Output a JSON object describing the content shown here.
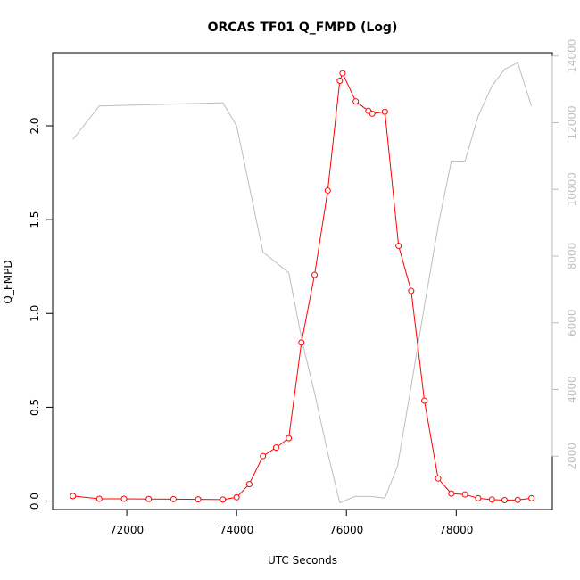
{
  "chart_data": {
    "type": "line",
    "title": "ORCAS TF01 Q_FMPD (Log)",
    "xlabel": "UTC Seconds",
    "ylabel": "Q_FMPD",
    "y2label": "",
    "xlim": [
      70650,
      79750
    ],
    "ylim": [
      -0.045,
      2.39
    ],
    "y2lim": [
      400,
      14100
    ],
    "x_ticks": [
      72000,
      74000,
      76000,
      78000
    ],
    "y_ticks": [
      0.0,
      0.5,
      1.0,
      1.5,
      2.0
    ],
    "y_tick_labels": [
      "0.0",
      "0.5",
      "1.0",
      "1.5",
      "2.0"
    ],
    "y2_ticks": [
      2000,
      4000,
      6000,
      8000,
      10000,
      12000,
      14000
    ],
    "grid": false,
    "series": [
      {
        "axis": "left",
        "color": "#ff0000",
        "marker": "open-circle",
        "x": [
          71020,
          71500,
          71950,
          72400,
          72850,
          73300,
          73750,
          74000,
          74230,
          74480,
          74720,
          74950,
          75180,
          75420,
          75660,
          75880,
          75930,
          76170,
          76400,
          76470,
          76700,
          76950,
          77180,
          77420,
          77670,
          77910,
          78160,
          78400,
          78650,
          78880,
          79120,
          79370
        ],
        "y": [
          0.027,
          0.012,
          0.012,
          0.011,
          0.01,
          0.009,
          0.008,
          0.02,
          0.09,
          0.24,
          0.285,
          0.335,
          0.845,
          1.205,
          1.655,
          2.24,
          2.28,
          2.13,
          2.08,
          2.065,
          2.075,
          1.36,
          1.12,
          0.535,
          0.12,
          0.04,
          0.035,
          0.015,
          0.008,
          0.005,
          0.006,
          0.015
        ]
      },
      {
        "axis": "right",
        "color": "#bebebe",
        "marker": "none",
        "x": [
          71020,
          71500,
          73750,
          74000,
          74230,
          74480,
          74950,
          75200,
          75420,
          75660,
          75880,
          76150,
          76450,
          76700,
          76930,
          77180,
          77420,
          77670,
          77910,
          78160,
          78400,
          78650,
          78880,
          79120,
          79370
        ],
        "y": [
          11500,
          12500,
          12600,
          11900,
          10100,
          8120,
          7500,
          5400,
          3900,
          2100,
          600,
          790,
          790,
          740,
          1700,
          4100,
          6500,
          8900,
          10850,
          10850,
          12200,
          13100,
          13600,
          13800,
          12500
        ]
      }
    ]
  }
}
